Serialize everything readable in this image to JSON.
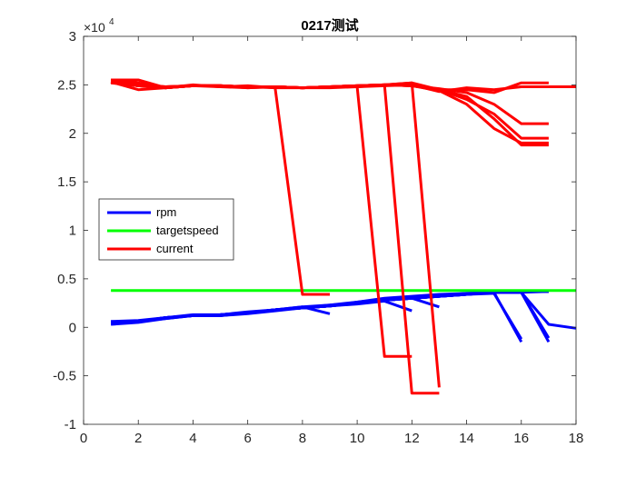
{
  "chart_data": {
    "type": "line",
    "title": "0217测试",
    "xlabel": "",
    "ylabel": "",
    "xlim": [
      0,
      18
    ],
    "ylim": [
      -1,
      3
    ],
    "y_scale_label": "×10",
    "y_scale_exponent": "4",
    "grid": false,
    "legend_position": "center-left",
    "x_ticks": [
      "0",
      "2",
      "4",
      "6",
      "8",
      "10",
      "12",
      "14",
      "16",
      "18"
    ],
    "y_ticks": [
      "-1",
      "-0.5",
      "0",
      "0.5",
      "1",
      "1.5",
      "2",
      "2.5",
      "3"
    ],
    "legend": [
      {
        "label": "rpm",
        "color": "#0000ff"
      },
      {
        "label": "targetspeed",
        "color": "#00ff00"
      },
      {
        "label": "current",
        "color": "#ff0000"
      }
    ],
    "series": [
      {
        "name": "rpm",
        "color": "#0000ff",
        "x": [
          1,
          2,
          3,
          4,
          5,
          6,
          7,
          8,
          9,
          10,
          11,
          12,
          13,
          14,
          15,
          16,
          17
        ],
        "y": [
          0.03,
          0.05,
          0.09,
          0.12,
          0.12,
          0.15,
          0.18,
          0.2,
          0.22,
          0.25,
          0.28,
          0.3,
          0.32,
          0.34,
          0.36,
          0.37,
          0.37
        ]
      },
      {
        "name": "rpm",
        "color": "#0000ff",
        "x": [
          1,
          2,
          3,
          4,
          5,
          6,
          7,
          8,
          9,
          10,
          11,
          12,
          13,
          14,
          15,
          16,
          17
        ],
        "y": [
          0.06,
          0.07,
          0.1,
          0.13,
          0.13,
          0.16,
          0.18,
          0.21,
          0.23,
          0.26,
          0.29,
          0.31,
          0.33,
          0.35,
          0.36,
          0.36,
          0.37
        ]
      },
      {
        "name": "rpm",
        "color": "#0000ff",
        "x": [
          1,
          2,
          3,
          4,
          5,
          6,
          7,
          8,
          9,
          10,
          11,
          12,
          13,
          14,
          15,
          16,
          17
        ],
        "y": [
          0.04,
          0.06,
          0.1,
          0.12,
          0.12,
          0.14,
          0.17,
          0.2,
          0.22,
          0.26,
          0.3,
          0.32,
          0.34,
          0.35,
          0.36,
          0.37,
          0.37
        ]
      },
      {
        "name": "rpm",
        "color": "#0000ff",
        "x": [
          1,
          2,
          3,
          4,
          5,
          6,
          7,
          8,
          9
        ],
        "y": [
          0.04,
          0.06,
          0.09,
          0.12,
          0.12,
          0.15,
          0.18,
          0.21,
          0.14
        ]
      },
      {
        "name": "rpm",
        "color": "#0000ff",
        "x": [
          1,
          2,
          3,
          4,
          5,
          6,
          7,
          8,
          9,
          10,
          11,
          12
        ],
        "y": [
          0.05,
          0.06,
          0.1,
          0.12,
          0.13,
          0.15,
          0.18,
          0.2,
          0.22,
          0.24,
          0.27,
          0.17
        ]
      },
      {
        "name": "rpm",
        "color": "#0000ff",
        "x": [
          1,
          2,
          3,
          4,
          5,
          6,
          7,
          8,
          9,
          10,
          11,
          12,
          13
        ],
        "y": [
          0.05,
          0.06,
          0.1,
          0.12,
          0.13,
          0.15,
          0.18,
          0.2,
          0.23,
          0.25,
          0.28,
          0.3,
          0.21
        ]
      },
      {
        "name": "rpm",
        "color": "#0000ff",
        "x": [
          1,
          2,
          3,
          4,
          5,
          6,
          7,
          8,
          9,
          10,
          11,
          12,
          13,
          14,
          15,
          16
        ],
        "y": [
          0.05,
          0.06,
          0.1,
          0.12,
          0.13,
          0.15,
          0.18,
          0.2,
          0.22,
          0.25,
          0.28,
          0.3,
          0.32,
          0.34,
          0.36,
          -0.15
        ]
      },
      {
        "name": "rpm",
        "color": "#0000ff",
        "x": [
          1,
          2,
          3,
          4,
          5,
          6,
          7,
          8,
          9,
          10,
          11,
          12,
          13,
          14,
          15,
          16
        ],
        "y": [
          0.05,
          0.06,
          0.1,
          0.12,
          0.13,
          0.15,
          0.18,
          0.2,
          0.22,
          0.25,
          0.28,
          0.3,
          0.32,
          0.34,
          0.35,
          -0.12
        ]
      },
      {
        "name": "rpm",
        "color": "#0000ff",
        "x": [
          1,
          2,
          3,
          4,
          5,
          6,
          7,
          8,
          9,
          10,
          11,
          12,
          13,
          14,
          15,
          16,
          17
        ],
        "y": [
          0.05,
          0.06,
          0.1,
          0.12,
          0.13,
          0.15,
          0.18,
          0.2,
          0.22,
          0.25,
          0.28,
          0.3,
          0.32,
          0.34,
          0.36,
          0.36,
          -0.15
        ]
      },
      {
        "name": "rpm",
        "color": "#0000ff",
        "x": [
          1,
          2,
          3,
          4,
          5,
          6,
          7,
          8,
          9,
          10,
          11,
          12,
          13,
          14,
          15,
          16,
          17
        ],
        "y": [
          0.05,
          0.06,
          0.1,
          0.12,
          0.13,
          0.15,
          0.18,
          0.2,
          0.22,
          0.25,
          0.28,
          0.3,
          0.32,
          0.34,
          0.36,
          0.36,
          -0.11
        ]
      },
      {
        "name": "rpm",
        "color": "#0000ff",
        "x": [
          1,
          2,
          3,
          4,
          5,
          6,
          7,
          8,
          9,
          10,
          11,
          12,
          13,
          14,
          15,
          16,
          17,
          18
        ],
        "y": [
          0.05,
          0.06,
          0.1,
          0.12,
          0.13,
          0.15,
          0.18,
          0.2,
          0.22,
          0.25,
          0.28,
          0.3,
          0.32,
          0.34,
          0.36,
          0.36,
          0.03,
          -0.01
        ]
      },
      {
        "name": "targetspeed",
        "color": "#00ff00",
        "x": [
          1,
          18
        ],
        "y": [
          0.38,
          0.38
        ]
      },
      {
        "name": "current",
        "color": "#ff0000",
        "x": [
          1,
          2,
          3,
          4,
          5,
          6,
          7,
          8,
          9,
          10,
          11,
          12,
          13,
          14,
          15,
          16,
          17,
          18
        ],
        "y": [
          2.55,
          2.55,
          2.47,
          2.5,
          2.48,
          2.49,
          2.47,
          2.47,
          2.47,
          2.48,
          2.49,
          2.5,
          2.43,
          2.47,
          2.45,
          2.48,
          2.48,
          2.48
        ]
      },
      {
        "name": "current",
        "color": "#ff0000",
        "x": [
          1,
          2,
          3,
          4,
          5,
          6,
          7,
          8,
          9,
          10,
          11,
          12,
          13,
          14,
          15,
          16,
          17
        ],
        "y": [
          2.53,
          2.45,
          2.47,
          2.49,
          2.48,
          2.47,
          2.48,
          2.47,
          2.48,
          2.48,
          2.5,
          2.52,
          2.45,
          2.45,
          2.42,
          2.52,
          2.52
        ]
      },
      {
        "name": "current",
        "color": "#ff0000",
        "x": [
          1,
          2,
          3,
          4,
          5,
          6,
          7,
          8,
          9
        ],
        "y": [
          2.55,
          2.52,
          2.47,
          2.49,
          2.49,
          2.48,
          2.47,
          0.34,
          0.34
        ]
      },
      {
        "name": "current",
        "color": "#ff0000",
        "x": [
          1,
          2,
          3,
          4,
          5,
          6,
          7,
          8,
          9,
          10,
          11,
          12
        ],
        "y": [
          2.53,
          2.5,
          2.48,
          2.49,
          2.49,
          2.47,
          2.48,
          2.47,
          2.48,
          2.48,
          -0.3,
          -0.3
        ]
      },
      {
        "name": "current",
        "color": "#ff0000",
        "x": [
          1,
          2,
          3,
          4,
          5,
          6,
          7,
          8,
          9,
          10,
          11,
          12,
          13
        ],
        "y": [
          2.54,
          2.5,
          2.48,
          2.49,
          2.49,
          2.48,
          2.48,
          2.47,
          2.48,
          2.49,
          2.5,
          -0.68,
          -0.68
        ]
      },
      {
        "name": "current",
        "color": "#ff0000",
        "x": [
          1,
          2,
          3,
          4,
          5,
          6,
          7,
          8,
          9,
          10,
          11,
          12,
          13
        ],
        "y": [
          2.52,
          2.49,
          2.48,
          2.49,
          2.49,
          2.48,
          2.48,
          2.47,
          2.48,
          2.49,
          2.5,
          2.52,
          -0.62
        ]
      },
      {
        "name": "current",
        "color": "#ff0000",
        "x": [
          1,
          2,
          3,
          4,
          5,
          6,
          7,
          8,
          9,
          10,
          11,
          12,
          13,
          14,
          15,
          16,
          17
        ],
        "y": [
          2.53,
          2.49,
          2.47,
          2.49,
          2.49,
          2.48,
          2.48,
          2.47,
          2.48,
          2.49,
          2.5,
          2.49,
          2.45,
          2.35,
          2.2,
          1.95,
          1.95
        ]
      },
      {
        "name": "current",
        "color": "#ff0000",
        "x": [
          1,
          2,
          3,
          4,
          5,
          6,
          7,
          8,
          9,
          10,
          11,
          12,
          13,
          14,
          15,
          16,
          17
        ],
        "y": [
          2.53,
          2.49,
          2.47,
          2.49,
          2.49,
          2.48,
          2.48,
          2.47,
          2.48,
          2.49,
          2.5,
          2.49,
          2.44,
          2.3,
          2.05,
          1.9,
          1.9
        ]
      },
      {
        "name": "current",
        "color": "#ff0000",
        "x": [
          1,
          2,
          3,
          4,
          5,
          6,
          7,
          8,
          9,
          10,
          11,
          12,
          13,
          14,
          15,
          16,
          17
        ],
        "y": [
          2.53,
          2.49,
          2.47,
          2.49,
          2.49,
          2.48,
          2.48,
          2.47,
          2.48,
          2.49,
          2.5,
          2.49,
          2.46,
          2.42,
          2.3,
          2.1,
          2.1
        ]
      },
      {
        "name": "current",
        "color": "#ff0000",
        "x": [
          1,
          2,
          3,
          4,
          5,
          6,
          7,
          8,
          9,
          10,
          11,
          12,
          13,
          14,
          15,
          16,
          17
        ],
        "y": [
          2.53,
          2.49,
          2.47,
          2.49,
          2.49,
          2.48,
          2.48,
          2.47,
          2.48,
          2.49,
          2.5,
          2.49,
          2.45,
          2.38,
          2.15,
          1.88,
          1.88
        ]
      }
    ]
  }
}
